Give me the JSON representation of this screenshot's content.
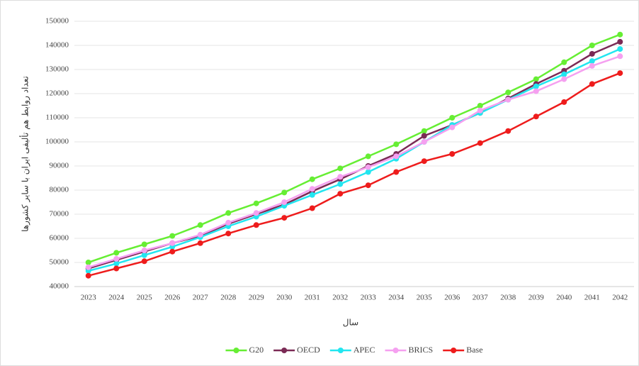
{
  "chart_data": {
    "type": "line",
    "y_label": "تعداد روابط هم تألیفی ایران با سایر کشورها",
    "x_label": "سال",
    "categories": [
      "2023",
      "2024",
      "2025",
      "2026",
      "2027",
      "2028",
      "2029",
      "2030",
      "2031",
      "2032",
      "2033",
      "2034",
      "2035",
      "2036",
      "2037",
      "2038",
      "2039",
      "2040",
      "2041",
      "2042"
    ],
    "series": [
      {
        "name": "G20",
        "color": "#66ee33",
        "values": [
          50000,
          54000,
          57500,
          61000,
          65500,
          70500,
          74500,
          79000,
          84500,
          89000,
          94000,
          99000,
          104500,
          110000,
          115000,
          120500,
          126000,
          133000,
          140000,
          144500
        ]
      },
      {
        "name": "OECD",
        "color": "#7b2a55",
        "values": [
          47500,
          51000,
          54500,
          58000,
          61000,
          66000,
          70000,
          74000,
          79500,
          84500,
          90000,
          95000,
          102500,
          107000,
          112000,
          118000,
          124000,
          129500,
          136500,
          141500
        ]
      },
      {
        "name": "APEC",
        "color": "#22e6f0",
        "values": [
          46500,
          49500,
          53000,
          56500,
          60500,
          65000,
          69000,
          73500,
          78000,
          82500,
          87500,
          93000,
          100000,
          107000,
          112000,
          117500,
          123000,
          128000,
          133500,
          138500
        ]
      },
      {
        "name": "BRICS",
        "color": "#f5a0f0",
        "values": [
          48000,
          51500,
          55000,
          58000,
          61500,
          66500,
          70500,
          75000,
          80500,
          85500,
          89500,
          94000,
          100000,
          106000,
          113000,
          117500,
          121000,
          126000,
          131500,
          135500
        ]
      },
      {
        "name": "Base",
        "color": "#ee1c1c",
        "values": [
          44500,
          47500,
          50500,
          54500,
          58000,
          62000,
          65500,
          68500,
          72500,
          78500,
          82000,
          87500,
          92000,
          95000,
          99500,
          104500,
          110500,
          116500,
          124000,
          128500
        ]
      }
    ],
    "ylim": [
      40000,
      150000
    ],
    "yticks": [
      40000,
      50000,
      60000,
      70000,
      80000,
      90000,
      100000,
      110000,
      120000,
      130000,
      140000,
      150000
    ],
    "grid": true,
    "legend": "bottom"
  }
}
